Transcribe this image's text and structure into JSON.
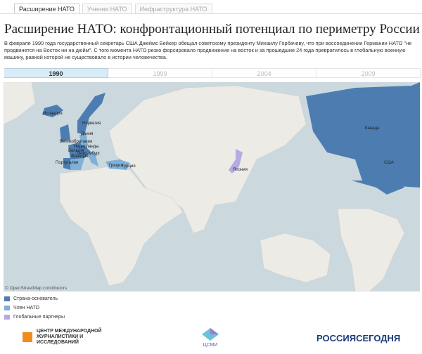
{
  "tabs": [
    "Расширение НАТО",
    "Учения НАТО",
    "Инфраструктура НАТО"
  ],
  "header": {
    "title": "Расширение НАТО: конфронтационный потенциал по периметру России",
    "text": "В феврале 1990 года государственный секретарь США Джеймс Бейкер обещал советскому президенту Михаилу Горбачеву, что при воссоединении Германии НАТО \"не продвинется на Восток ни на дюйм\". С того момента НАТО резко форсировало продвижение на восток и за прошедшие 24 года превратилось в глобальную военную машину, равной которой не существовало в истории человечества."
  },
  "timeline": [
    "1990",
    "1999",
    "2004",
    "2009"
  ],
  "map": {
    "labels": [
      "Исландия",
      "Норвегия",
      "Дания",
      "Великобритания",
      "Нидерланды",
      "Бельгия",
      "Люксембург",
      "Франция",
      "Португалия",
      "Греция",
      "Турция",
      "Япония",
      "Канада",
      "США"
    ],
    "attribution": "© OpenStreetMap contributors"
  },
  "legend": [
    "Страна-основатель",
    "Член НАТО",
    "Глобальные партнеры"
  ],
  "footer": {
    "left": "ЦЕНТР МЕЖДУНАРОДНОЙ ЖУРНАЛИСТИКИ И ИССЛЕДОВАНИЙ",
    "center": "ЦСМИ",
    "right": "РОССИЯСЕГОДНЯ"
  }
}
